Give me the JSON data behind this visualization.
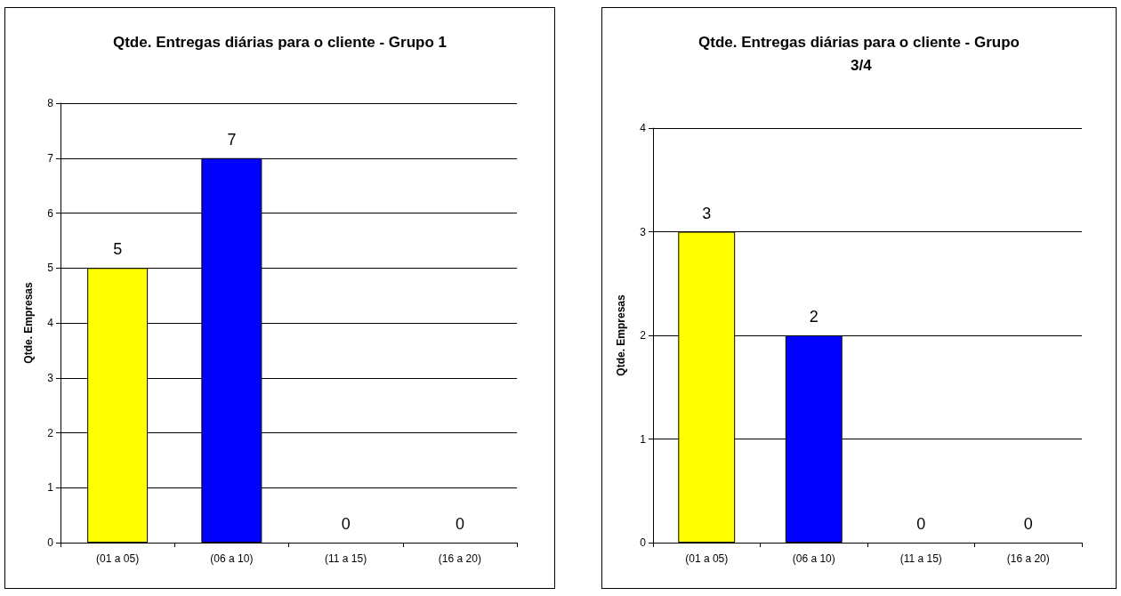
{
  "chart_data": [
    {
      "type": "bar",
      "title": "Qtde. Entregas diárias para o cliente - Grupo 1",
      "ylabel": "Qtde. Empresas",
      "categories": [
        "(01 a 05)",
        "(06 a 10)",
        "(11 a 15)",
        "(16 a 20)"
      ],
      "values": [
        5,
        7,
        0,
        0
      ],
      "colors": [
        "#ffff00",
        "#0000ff",
        null,
        null
      ],
      "ylim": [
        0,
        8
      ],
      "yticks": [
        0,
        1,
        2,
        3,
        4,
        5,
        6,
        7,
        8
      ],
      "grid": "y",
      "data_labels": true
    },
    {
      "type": "bar",
      "title": "Qtde. Entregas diárias para o cliente - Grupo 3/4",
      "ylabel": "Qtde. Empresas",
      "categories": [
        "(01 a 05)",
        "(06 a 10)",
        "(11 a 15)",
        "(16 a 20)"
      ],
      "values": [
        3,
        2,
        0,
        0
      ],
      "colors": [
        "#ffff00",
        "#0000ff",
        null,
        null
      ],
      "ylim": [
        0,
        4
      ],
      "yticks": [
        0,
        1,
        2,
        3,
        4
      ],
      "grid": "y",
      "data_labels": true
    }
  ]
}
